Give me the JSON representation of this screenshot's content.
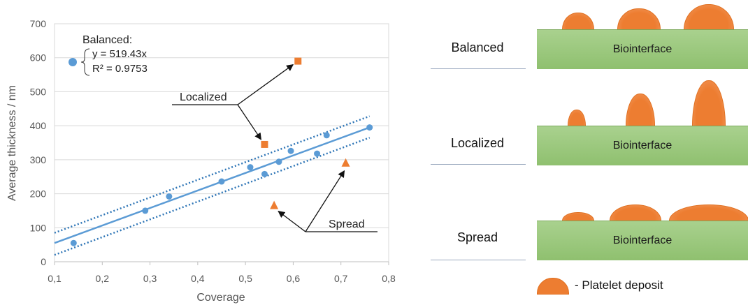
{
  "chart_data": {
    "type": "scatter",
    "xlabel": "Coverage",
    "ylabel": "Average thickness / nm",
    "xlim": [
      0.1,
      0.8
    ],
    "ylim": [
      0,
      700
    ],
    "x_ticks": [
      "0,1",
      "0,2",
      "0,3",
      "0,4",
      "0,5",
      "0,6",
      "0,7",
      "0,8"
    ],
    "y_ticks": [
      "0",
      "100",
      "200",
      "300",
      "400",
      "500",
      "600",
      "700"
    ],
    "grid": "horizontal",
    "series": [
      {
        "name": "Balanced:",
        "marker": "circle",
        "color": "#5b9bd5",
        "points": [
          [
            0.14,
            55
          ],
          [
            0.29,
            150
          ],
          [
            0.34,
            192
          ],
          [
            0.45,
            236
          ],
          [
            0.51,
            278
          ],
          [
            0.54,
            258
          ],
          [
            0.57,
            294
          ],
          [
            0.595,
            326
          ],
          [
            0.65,
            318
          ],
          [
            0.67,
            372
          ],
          [
            0.76,
            395
          ]
        ]
      },
      {
        "name": "Localized",
        "marker": "square",
        "color": "#ed7d31",
        "points": [
          [
            0.54,
            345
          ],
          [
            0.61,
            590
          ]
        ]
      },
      {
        "name": "Spread",
        "marker": "triangle",
        "color": "#ed7d31",
        "points": [
          [
            0.56,
            165
          ],
          [
            0.71,
            290
          ]
        ]
      }
    ],
    "fit": {
      "equation": "y = 519.43x",
      "r2": "R² = 0.9753",
      "line": [
        [
          0.1,
          55
        ],
        [
          0.76,
          395
        ]
      ],
      "bound_upper": [
        [
          0.1,
          85
        ],
        [
          0.76,
          428
        ]
      ],
      "bound_lower": [
        [
          0.1,
          20
        ],
        [
          0.76,
          365
        ]
      ],
      "color": "#5b9bd5"
    },
    "annotations": {
      "balanced_title": "Balanced:",
      "localized": "Localized",
      "spread": "Spread"
    }
  },
  "diagram": {
    "rows": [
      {
        "label": "Balanced",
        "substrate": "Biointerface"
      },
      {
        "label": "Localized",
        "substrate": "Biointerface"
      },
      {
        "label": "Spread",
        "substrate": "Biointerface"
      }
    ],
    "legend": "- Platelet deposit",
    "colors": {
      "deposit": "#ed7d31",
      "substrate": "#a9d18e"
    }
  }
}
